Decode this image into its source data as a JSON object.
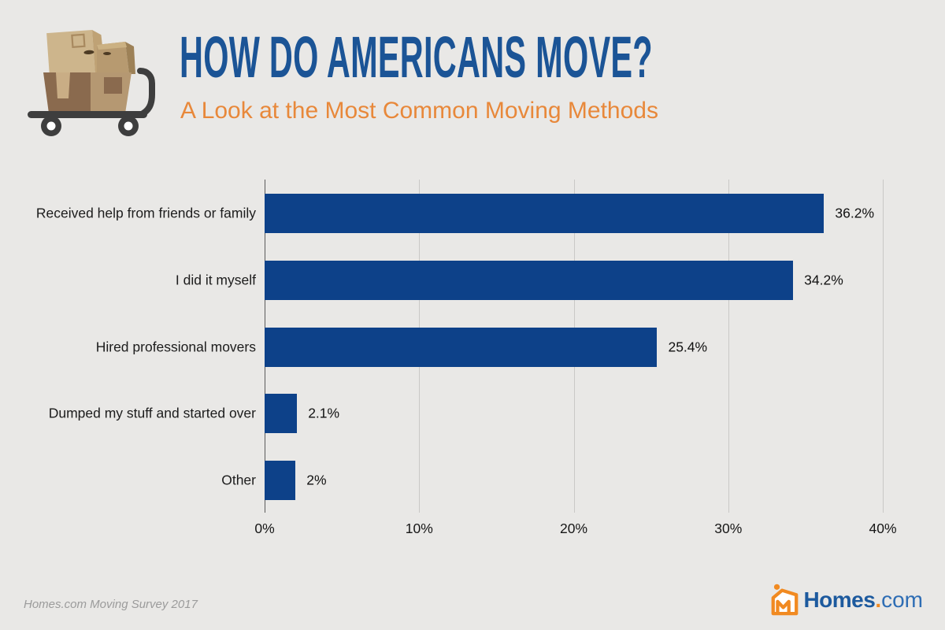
{
  "header": {
    "title": "HOW DO AMERICANS MOVE?",
    "subtitle": "A Look at the Most Common Moving Methods",
    "icon": "moving-boxes-dolly-icon"
  },
  "chart_data": {
    "type": "bar",
    "orientation": "horizontal",
    "title": "How Do Americans Move?",
    "categories": [
      "Received help from friends or family",
      "I did it myself",
      "Hired professional movers",
      "Dumped my stuff and started over",
      "Other"
    ],
    "values": [
      36.2,
      34.2,
      25.4,
      2.1,
      2
    ],
    "value_labels": [
      "36.2%",
      "34.2%",
      "25.4%",
      "2.1%",
      "2%"
    ],
    "x_ticks": [
      "0%",
      "10%",
      "20%",
      "30%",
      "40%"
    ],
    "xlim": [
      0,
      40
    ],
    "grid": true,
    "legend": false,
    "bar_color": "#0d4189"
  },
  "footer": {
    "source_note": "Homes.com Moving Survey 2017",
    "logo": {
      "word": "Homes",
      "dot": ".",
      "tld": "com"
    }
  },
  "colors": {
    "background": "#e9e8e6",
    "title_blue": "#1b5496",
    "subtitle_orange": "#e8883a",
    "bar_blue": "#0d4189",
    "gridline": "#c9c8c6",
    "axis_line": "#5b5b5b",
    "text_dark": "#1c1c1c",
    "source_gray": "#9b9b9b",
    "logo_orange": "#f18a21",
    "logo_navy": "#1d5a9e",
    "logo_blue": "#2e6db4"
  }
}
